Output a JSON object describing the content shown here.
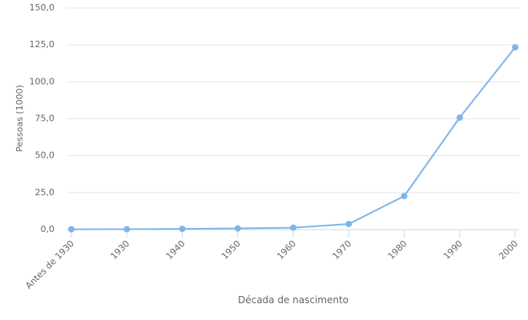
{
  "chart_data": {
    "type": "line",
    "x_label": "Década de nascimento",
    "y_label": "Pessoas (1000)",
    "categories": [
      "Antes de 1930",
      "1930",
      "1940",
      "1950",
      "1960",
      "1970",
      "1980",
      "1990",
      "2000"
    ],
    "series": [
      {
        "name": "Pessoas",
        "color": "#7cb5ec",
        "values": [
          0.2,
          0.3,
          0.5,
          0.8,
          1.3,
          3.8,
          22.7,
          75.8,
          123.4
        ]
      }
    ],
    "ylim": [
      0,
      150
    ],
    "yticks": [
      {
        "value": 0,
        "label": "0,0"
      },
      {
        "value": 25,
        "label": "25,0"
      },
      {
        "value": 50,
        "label": "50,0"
      },
      {
        "value": 75,
        "label": "75,0"
      },
      {
        "value": 100,
        "label": "100,0"
      },
      {
        "value": 125,
        "label": "125,0"
      },
      {
        "value": 150,
        "label": "150,0"
      }
    ],
    "grid": true
  }
}
